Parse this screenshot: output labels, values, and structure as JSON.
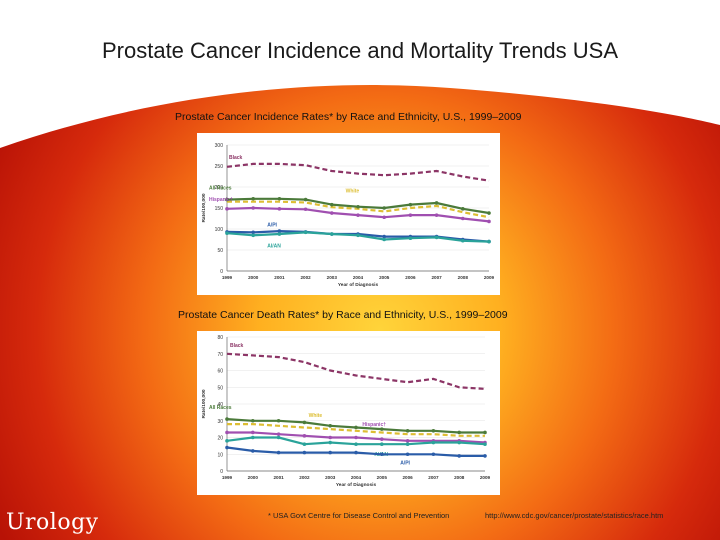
{
  "page": {
    "title": "Prostate Cancer Incidence and Mortality Trends USA",
    "footnote": "* USA Govt Centre for Disease Control and Prevention",
    "source_url": "http://www.cdc.gov/cancer/prostate/statistics/race.htm",
    "logo": "Urology"
  },
  "colors": {
    "black": "#8c3566",
    "white": "#ddbe33",
    "all_races": "#4b7a3a",
    "hispanic": "#a04fb0",
    "api": "#2a5ca8",
    "aian": "#2aa39a"
  },
  "chart_data": [
    {
      "type": "line",
      "title": "Prostate Cancer Incidence Rates* by Race and Ethnicity, U.S., 1999–2009",
      "xlabel": "Year of Diagnosis",
      "ylabel": "Rate/100,000",
      "x": [
        "1999",
        "2000",
        "2001",
        "2002",
        "2003",
        "2004",
        "2005",
        "2006",
        "2007",
        "2008",
        "2009"
      ],
      "ylim": [
        0,
        300
      ],
      "yticks": [
        0,
        50,
        100,
        150,
        200,
        250,
        300
      ],
      "series": [
        {
          "name": "Black",
          "color_key": "black",
          "dash": true,
          "values": [
            248,
            255,
            255,
            252,
            238,
            232,
            228,
            232,
            238,
            225,
            215
          ]
        },
        {
          "name": "White",
          "color_key": "white",
          "dash": true,
          "values": [
            165,
            165,
            165,
            163,
            152,
            148,
            142,
            150,
            155,
            140,
            128
          ]
        },
        {
          "name": "All Races",
          "color_key": "all_races",
          "dash": false,
          "values": [
            170,
            172,
            172,
            170,
            158,
            153,
            150,
            158,
            162,
            148,
            138
          ]
        },
        {
          "name": "Hispanic†",
          "color_key": "hispanic",
          "dash": false,
          "values": [
            148,
            150,
            148,
            147,
            138,
            133,
            128,
            133,
            133,
            125,
            118
          ]
        },
        {
          "name": "A/PI",
          "color_key": "api",
          "dash": false,
          "values": [
            93,
            92,
            95,
            93,
            88,
            88,
            82,
            82,
            82,
            75,
            70
          ]
        },
        {
          "name": "AI/AN",
          "color_key": "aian",
          "dash": false,
          "values": [
            90,
            85,
            88,
            92,
            88,
            85,
            75,
            78,
            80,
            72,
            70
          ]
        }
      ],
      "labels": {
        "black": "Black",
        "white": "White",
        "all_races": "All Races",
        "hispanic": "Hispanic†",
        "api": "A/PI",
        "aian": "AI/AN"
      }
    },
    {
      "type": "line",
      "title": "Prostate Cancer Death Rates* by Race and Ethnicity, U.S., 1999–2009",
      "xlabel": "Year of Diagnosis",
      "ylabel": "Rate/100,000",
      "x": [
        "1999",
        "2000",
        "2001",
        "2002",
        "2003",
        "2004",
        "2005",
        "2006",
        "2007",
        "2008",
        "2009"
      ],
      "ylim": [
        0,
        80
      ],
      "yticks": [
        0,
        10,
        20,
        30,
        40,
        50,
        60,
        70,
        80
      ],
      "series": [
        {
          "name": "Black",
          "color_key": "black",
          "dash": true,
          "values": [
            70,
            69,
            68,
            65,
            60,
            57,
            55,
            53,
            55,
            50,
            49
          ]
        },
        {
          "name": "White",
          "color_key": "white",
          "dash": true,
          "values": [
            28,
            28,
            27,
            26,
            25,
            24,
            23,
            22,
            22,
            21,
            21
          ]
        },
        {
          "name": "All Races",
          "color_key": "all_races",
          "dash": false,
          "values": [
            31,
            30,
            30,
            29,
            27,
            26,
            25,
            24,
            24,
            23,
            23
          ]
        },
        {
          "name": "Hispanic†",
          "color_key": "hispanic",
          "dash": false,
          "values": [
            23,
            23,
            22,
            21,
            20,
            20,
            19,
            18,
            18,
            18,
            17
          ]
        },
        {
          "name": "AI/AN",
          "color_key": "aian",
          "dash": false,
          "values": [
            18,
            20,
            20,
            16,
            17,
            16,
            16,
            16,
            17,
            17,
            16
          ]
        },
        {
          "name": "A/PI",
          "color_key": "api",
          "dash": false,
          "values": [
            14,
            12,
            11,
            11,
            11,
            11,
            10,
            10,
            10,
            9,
            9
          ]
        }
      ],
      "labels": {
        "black": "Black",
        "white": "White",
        "all_races": "All Races",
        "hispanic": "Hispanic†",
        "api": "A/PI",
        "aian": "AI/AN"
      }
    }
  ]
}
